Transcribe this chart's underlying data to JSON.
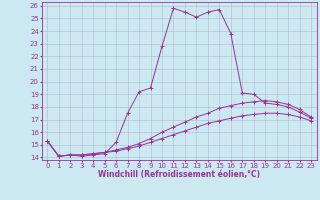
{
  "xlabel": "Windchill (Refroidissement éolien,°C)",
  "bg_color": "#cce8f0",
  "line_color": "#993399",
  "xlim": [
    -0.5,
    23.5
  ],
  "ylim": [
    13.8,
    26.3
  ],
  "yticks": [
    14,
    15,
    16,
    17,
    18,
    19,
    20,
    21,
    22,
    23,
    24,
    25,
    26
  ],
  "xticks": [
    0,
    1,
    2,
    3,
    4,
    5,
    6,
    7,
    8,
    9,
    10,
    11,
    12,
    13,
    14,
    15,
    16,
    17,
    18,
    19,
    20,
    21,
    22,
    23
  ],
  "series1_x": [
    0,
    1,
    2,
    3,
    4,
    5,
    6,
    7,
    8,
    9,
    10,
    11,
    12,
    13,
    14,
    15,
    16,
    17,
    18,
    19,
    20,
    21,
    22,
    23
  ],
  "series1_y": [
    15.3,
    14.1,
    14.2,
    14.1,
    14.2,
    14.3,
    15.2,
    17.5,
    19.2,
    19.5,
    22.8,
    25.8,
    25.5,
    25.1,
    25.5,
    25.7,
    23.8,
    19.1,
    19.0,
    18.3,
    18.2,
    18.0,
    17.6,
    17.1
  ],
  "series2_x": [
    0,
    1,
    2,
    3,
    4,
    5,
    6,
    7,
    8,
    9,
    10,
    11,
    12,
    13,
    14,
    15,
    16,
    17,
    18,
    19,
    20,
    21,
    22,
    23
  ],
  "series2_y": [
    15.3,
    14.1,
    14.2,
    14.2,
    14.3,
    14.4,
    14.6,
    14.8,
    15.1,
    15.5,
    16.0,
    16.4,
    16.8,
    17.2,
    17.5,
    17.9,
    18.1,
    18.3,
    18.4,
    18.5,
    18.4,
    18.2,
    17.8,
    17.2
  ],
  "series3_x": [
    0,
    1,
    2,
    3,
    4,
    5,
    6,
    7,
    8,
    9,
    10,
    11,
    12,
    13,
    14,
    15,
    16,
    17,
    18,
    19,
    20,
    21,
    22,
    23
  ],
  "series3_y": [
    15.3,
    14.1,
    14.2,
    14.2,
    14.3,
    14.4,
    14.5,
    14.7,
    14.9,
    15.2,
    15.5,
    15.8,
    16.1,
    16.4,
    16.7,
    16.9,
    17.1,
    17.3,
    17.4,
    17.5,
    17.5,
    17.4,
    17.2,
    16.9
  ],
  "grid_color": "#b0b8cc",
  "axis_fontsize": 5.5,
  "tick_fontsize": 5.0
}
